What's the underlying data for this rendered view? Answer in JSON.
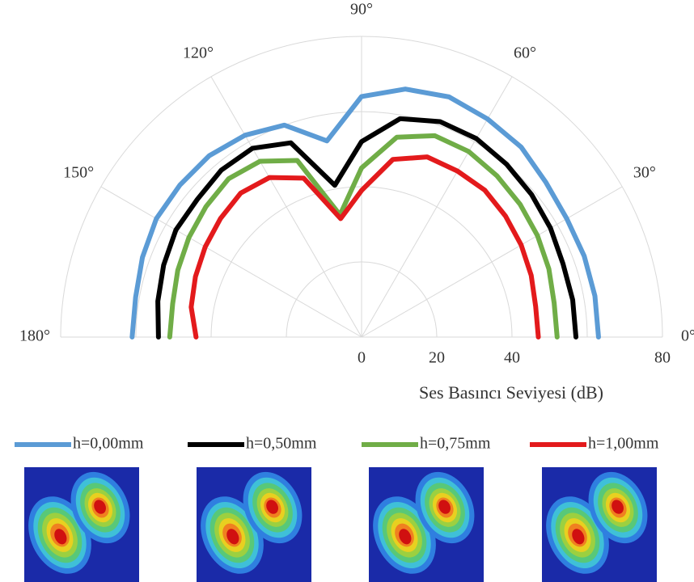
{
  "chart_data": {
    "type": "polar",
    "theta": [
      0,
      10,
      20,
      30,
      40,
      50,
      60,
      70,
      80,
      90,
      100,
      110,
      120,
      130,
      140,
      150,
      160,
      170,
      180
    ],
    "thetaticks": [
      {
        "value": 0,
        "label": "0°"
      },
      {
        "value": 30,
        "label": "30°"
      },
      {
        "value": 60,
        "label": "60°"
      },
      {
        "value": 90,
        "label": "90°"
      },
      {
        "value": 120,
        "label": "120°"
      },
      {
        "value": 150,
        "label": "150°"
      },
      {
        "value": 180,
        "label": "180°"
      }
    ],
    "rlim": [
      0,
      80
    ],
    "rticks": [
      0,
      20,
      40,
      80
    ],
    "rgrid": [
      20,
      40,
      60,
      80
    ],
    "r_label": "Ses Basıncı Seviyesi (dB)",
    "legend": "bottom",
    "series": [
      {
        "name": "h=0,00mm",
        "color": "#5b9bd5",
        "values": [
          63,
          63,
          63,
          63,
          64,
          66,
          67,
          68,
          67,
          64,
          53,
          60,
          62,
          63,
          63,
          63,
          62,
          61,
          61
        ]
      },
      {
        "name": "h=0,50mm",
        "color": "#000000",
        "values": [
          57,
          57,
          57,
          58,
          59,
          60,
          61,
          61,
          59,
          52,
          41,
          55,
          58,
          58,
          57,
          57,
          56,
          55,
          54
        ]
      },
      {
        "name": "h=0,75mm",
        "color": "#70ad47",
        "values": [
          52,
          52,
          53,
          54,
          55,
          56,
          57,
          57,
          54,
          45,
          33,
          50,
          54,
          55,
          54,
          53,
          52,
          51,
          51
        ]
      },
      {
        "name": "h=1,00mm",
        "color": "#e31a1c",
        "values": [
          47,
          47,
          48,
          49,
          50,
          51,
          51,
          51,
          48,
          39,
          32,
          45,
          49,
          50,
          49,
          48,
          47,
          46,
          44
        ]
      }
    ]
  }
}
